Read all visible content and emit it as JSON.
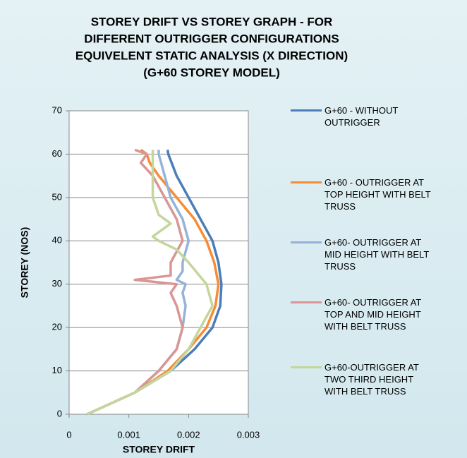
{
  "chart_data": {
    "type": "line",
    "title": [
      "STOREY DRIFT VS STOREY GRAPH - FOR",
      "DIFFERENT OUTRIGGER CONFIGURATIONS",
      "EQUIVELENT STATIC ANALYSIS (X DIRECTION)",
      "(G+60 STOREY MODEL)"
    ],
    "x_label": "STOREY DRIFT",
    "y_label": "STOREY (NOS)",
    "xlim": [
      0,
      0.003
    ],
    "xticks": [
      0,
      0.001,
      0.002,
      0.003
    ],
    "ylim": [
      0,
      70
    ],
    "yticks": [
      0,
      10,
      20,
      30,
      40,
      50,
      60,
      70
    ],
    "grid": true,
    "legend": "right",
    "series": [
      {
        "name": "G+60 - WITHOUT OUTRIGGER",
        "color": "#4a7ebb",
        "x": [
          0.0003,
          0.0011,
          0.0017,
          0.0021,
          0.0024,
          0.00253,
          0.00255,
          0.0025,
          0.0024,
          0.0022,
          0.002,
          0.0018,
          0.00166,
          0.00165
        ],
        "values": [
          0,
          5,
          10,
          15,
          20,
          25,
          30,
          35,
          40,
          45,
          50,
          55,
          60,
          61
        ]
      },
      {
        "name": "G+60 - OUTRIGGER AT TOP HEIGHT WITH BELT TRUSS",
        "color": "#f68c36",
        "x": [
          0.0003,
          0.0011,
          0.00165,
          0.002,
          0.0023,
          0.00245,
          0.0025,
          0.00243,
          0.0023,
          0.0021,
          0.0018,
          0.0015,
          0.00135,
          0.0013,
          0.0012
        ],
        "values": [
          0,
          5,
          10,
          15,
          20,
          25,
          30,
          35,
          40,
          45,
          50,
          55,
          58,
          60,
          61
        ]
      },
      {
        "name": "G+60- OUTRIGGER AT MID HEIGHT WITH BELT TRUSS",
        "color": "#95b3d7",
        "x": [
          0.0003,
          0.0011,
          0.0015,
          0.0018,
          0.0019,
          0.00195,
          0.0019,
          0.00195,
          0.0018,
          0.0019,
          0.0019,
          0.002,
          0.0019,
          0.0017,
          0.0016,
          0.0015,
          0.0015
        ],
        "values": [
          0,
          5,
          10,
          15,
          20,
          25,
          28,
          30,
          31,
          33,
          35,
          40,
          45,
          50,
          55,
          60,
          61
        ]
      },
      {
        "name": "G+60- OUTRIGGER AT TOP AND MID HEIGHT WITH BELT TRUSS",
        "color": "#d99694",
        "x": [
          0.0003,
          0.0011,
          0.0015,
          0.0018,
          0.0019,
          0.0018,
          0.0017,
          0.0018,
          0.0011,
          0.0017,
          0.0017,
          0.0019,
          0.0018,
          0.0016,
          0.0014,
          0.0012,
          0.0013,
          0.0011
        ],
        "values": [
          0,
          5,
          10,
          15,
          20,
          25,
          28,
          30,
          31,
          32,
          35,
          40,
          45,
          50,
          55,
          58,
          60,
          61
        ]
      },
      {
        "name": "G+60-OUTRIGGER AT TWO THIRD HEIGHT WITH BELT TRUSS",
        "color": "#c3d69b",
        "x": [
          0.0003,
          0.0011,
          0.0017,
          0.002,
          0.0022,
          0.0024,
          0.0023,
          0.002,
          0.0018,
          0.0015,
          0.0014,
          0.0015,
          0.0017,
          0.0015,
          0.0014,
          0.0014,
          0.0014,
          0.0014
        ],
        "values": [
          0,
          5,
          10,
          15,
          20,
          25,
          30,
          35,
          38,
          40,
          41,
          42,
          44,
          46,
          50,
          55,
          60,
          61
        ]
      }
    ]
  }
}
